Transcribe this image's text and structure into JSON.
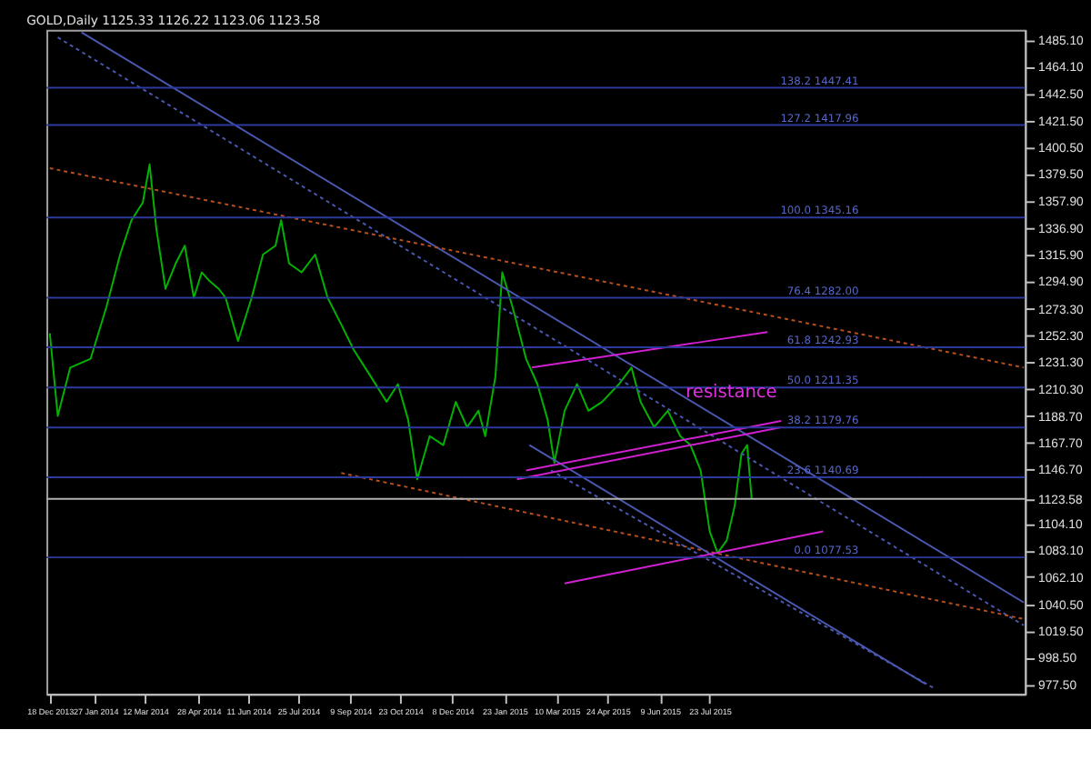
{
  "chart_data": {
    "type": "line",
    "title": "GOLD,Daily  1125.33 1126.22 1123.06 1123.58",
    "xlim": [
      "2013-12-15",
      "2016-04-26"
    ],
    "xticks": [
      {
        "value": "2013-12-18",
        "label": "18 Dec 2013"
      },
      {
        "value": "2014-01-27",
        "label": "27 Jan 2014"
      },
      {
        "value": "2014-03-12",
        "label": "12 Mar 2014"
      },
      {
        "value": "2014-04-28",
        "label": "28 Apr 2014"
      },
      {
        "value": "2014-06-11",
        "label": "11 Jun 2014"
      },
      {
        "value": "2014-07-25",
        "label": "25 Jul 2014"
      },
      {
        "value": "2014-09-09",
        "label": "9 Sep 2014"
      },
      {
        "value": "2014-10-23",
        "label": "23 Oct 2014"
      },
      {
        "value": "2014-12-08",
        "label": "8 Dec 2014"
      },
      {
        "value": "2015-01-23",
        "label": "23 Jan 2015"
      },
      {
        "value": "2015-03-10",
        "label": "10 Mar 2015"
      },
      {
        "value": "2015-04-24",
        "label": "24 Apr 2015"
      },
      {
        "value": "2015-06-09",
        "label": "9 Jun 2015"
      },
      {
        "value": "2015-07-23",
        "label": "23 Jul 2015"
      }
    ],
    "ylim": [
      970,
      1493
    ],
    "yticks": [
      {
        "value": 1485.1,
        "label": "1485.10"
      },
      {
        "value": 1464.1,
        "label": "1464.10"
      },
      {
        "value": 1442.5,
        "label": "1442.50"
      },
      {
        "value": 1421.5,
        "label": "1421.50"
      },
      {
        "value": 1400.5,
        "label": "1400.50"
      },
      {
        "value": 1379.5,
        "label": "1379.50"
      },
      {
        "value": 1357.9,
        "label": "1357.90"
      },
      {
        "value": 1336.9,
        "label": "1336.90"
      },
      {
        "value": 1315.9,
        "label": "1315.90"
      },
      {
        "value": 1294.9,
        "label": "1294.90"
      },
      {
        "value": 1273.3,
        "label": "1273.30"
      },
      {
        "value": 1252.3,
        "label": "1252.30"
      },
      {
        "value": 1231.3,
        "label": "1231.30"
      },
      {
        "value": 1210.3,
        "label": "1210.30"
      },
      {
        "value": 1188.7,
        "label": "1188.70"
      },
      {
        "value": 1167.7,
        "label": "1167.70"
      },
      {
        "value": 1146.7,
        "label": "1146.70"
      },
      {
        "value": 1123.58,
        "label": "1123.58"
      },
      {
        "value": 1104.1,
        "label": "1104.10"
      },
      {
        "value": 1083.1,
        "label": "1083.10"
      },
      {
        "value": 1062.1,
        "label": "1062.10"
      },
      {
        "value": 1040.5,
        "label": "1040.50"
      },
      {
        "value": 1019.5,
        "label": "1019.50"
      },
      {
        "value": 998.5,
        "label": "998.50"
      },
      {
        "value": 977.5,
        "label": "977.50"
      }
    ],
    "grid": false,
    "series": [
      {
        "color": "#00b400",
        "line_style": "solid",
        "x": [
          "2013-12-18",
          "2013-12-25",
          "2014-01-05",
          "2014-01-23",
          "2014-02-06",
          "2014-02-18",
          "2014-02-28",
          "2014-03-10",
          "2014-03-16",
          "2014-03-22",
          "2014-03-30",
          "2014-04-08",
          "2014-04-16",
          "2014-04-24",
          "2014-05-01",
          "2014-05-08",
          "2014-05-16",
          "2014-05-22",
          "2014-06-02",
          "2014-06-14",
          "2014-06-24",
          "2014-07-05",
          "2014-07-10",
          "2014-07-17",
          "2014-07-28",
          "2014-08-09",
          "2014-08-20",
          "2014-09-01",
          "2014-09-12",
          "2014-09-27",
          "2014-10-11",
          "2014-10-21",
          "2014-10-30",
          "2014-11-07",
          "2014-11-18",
          "2014-11-30",
          "2014-12-11",
          "2014-12-21",
          "2014-12-31",
          "2015-01-06",
          "2015-01-15",
          "2015-01-21",
          "2015-01-30",
          "2015-02-11",
          "2015-02-21",
          "2015-03-02",
          "2015-03-08",
          "2015-03-17",
          "2015-03-28",
          "2015-04-07",
          "2015-04-19",
          "2015-05-04",
          "2015-05-15",
          "2015-05-23",
          "2015-06-04",
          "2015-06-16",
          "2015-06-27",
          "2015-07-06",
          "2015-07-15",
          "2015-07-23",
          "2015-07-30",
          "2015-08-07",
          "2015-08-14",
          "2015-08-20",
          "2015-08-25",
          "2015-08-29"
        ],
        "values": [
          1254,
          1189,
          1227,
          1234,
          1275,
          1316,
          1343,
          1357,
          1387,
          1336,
          1289,
          1309,
          1323,
          1282,
          1302,
          1295,
          1289,
          1282,
          1248,
          1282,
          1316,
          1323,
          1343,
          1309,
          1302,
          1316,
          1282,
          1261,
          1241,
          1220,
          1200,
          1214,
          1186,
          1139,
          1173,
          1166,
          1200,
          1180,
          1193,
          1173,
          1220,
          1302,
          1275,
          1234,
          1214,
          1186,
          1152,
          1193,
          1214,
          1193,
          1200,
          1214,
          1227,
          1200,
          1180,
          1193,
          1173,
          1166,
          1146,
          1098,
          1081,
          1091,
          1118,
          1159,
          1166,
          1123.58
        ]
      },
      {
        "color": "#4a58b0",
        "line_style": "solid",
        "x": [
          "2014-01-15",
          "2016-04-25"
        ],
        "values": [
          1491,
          1042
        ]
      },
      {
        "color": "#4a58b0",
        "line_style": "dotted",
        "x": [
          "2013-12-25",
          "2016-04-25"
        ],
        "values": [
          1487,
          1024
        ]
      },
      {
        "color": "#b8501e",
        "line_style": "dotted",
        "x": [
          "2013-12-18",
          "2016-04-25"
        ],
        "values": [
          1384,
          1227
        ]
      },
      {
        "color": "#b8501e",
        "line_style": "dotted",
        "x": [
          "2014-09-01",
          "2016-04-25"
        ],
        "values": [
          1144,
          1029
        ]
      },
      {
        "color": "#4a58b0",
        "line_style": "solid",
        "x": [
          "2015-02-14",
          "2016-01-29"
        ],
        "values": [
          1166,
          978
        ]
      },
      {
        "color": "#4a58b0",
        "line_style": "dotted",
        "x": [
          "2015-03-05",
          "2016-02-05"
        ],
        "values": [
          1146,
          975
        ]
      },
      {
        "color": "#d020d0",
        "line_style": "solid",
        "x": [
          "2015-02-16",
          "2015-09-12"
        ],
        "values": [
          1227,
          1255
        ]
      },
      {
        "color": "#d020d0",
        "line_style": "solid",
        "x": [
          "2015-02-03",
          "2015-09-24"
        ],
        "values": [
          1139,
          1180
        ]
      },
      {
        "color": "#d020d0",
        "line_style": "solid",
        "x": [
          "2015-02-11",
          "2015-09-24"
        ],
        "values": [
          1146,
          1185
        ]
      },
      {
        "color": "#d020d0",
        "line_style": "solid",
        "x": [
          "2015-03-17",
          "2015-10-31"
        ],
        "values": [
          1057,
          1098
        ]
      }
    ],
    "ref_lines": [
      {
        "axis": "y",
        "value": 1447.41,
        "label": "138.2  1447.41",
        "color": "#2c3a9c"
      },
      {
        "axis": "y",
        "value": 1417.96,
        "label": "127.2  1417.96",
        "color": "#2c3a9c"
      },
      {
        "axis": "y",
        "value": 1345.16,
        "label": "100.0  1345.16",
        "color": "#2c3a9c"
      },
      {
        "axis": "y",
        "value": 1282.0,
        "label": "76.4  1282.00",
        "color": "#2c3a9c"
      },
      {
        "axis": "y",
        "value": 1242.93,
        "label": "61.8  1242.93",
        "color": "#2c3a9c"
      },
      {
        "axis": "y",
        "value": 1211.35,
        "label": "50.0  1211.35",
        "color": "#2c3a9c"
      },
      {
        "axis": "y",
        "value": 1179.76,
        "label": "38.2  1179.76",
        "color": "#2c3a9c"
      },
      {
        "axis": "y",
        "value": 1140.69,
        "label": "23.6  1140.69",
        "color": "#2c3a9c"
      },
      {
        "axis": "y",
        "value": 1077.53,
        "label": "0.0  1077.53",
        "color": "#2c3a9c"
      },
      {
        "axis": "y",
        "value": 1123.58,
        "color": "#b0b0b0"
      }
    ],
    "annotations": [
      "resistance"
    ]
  }
}
